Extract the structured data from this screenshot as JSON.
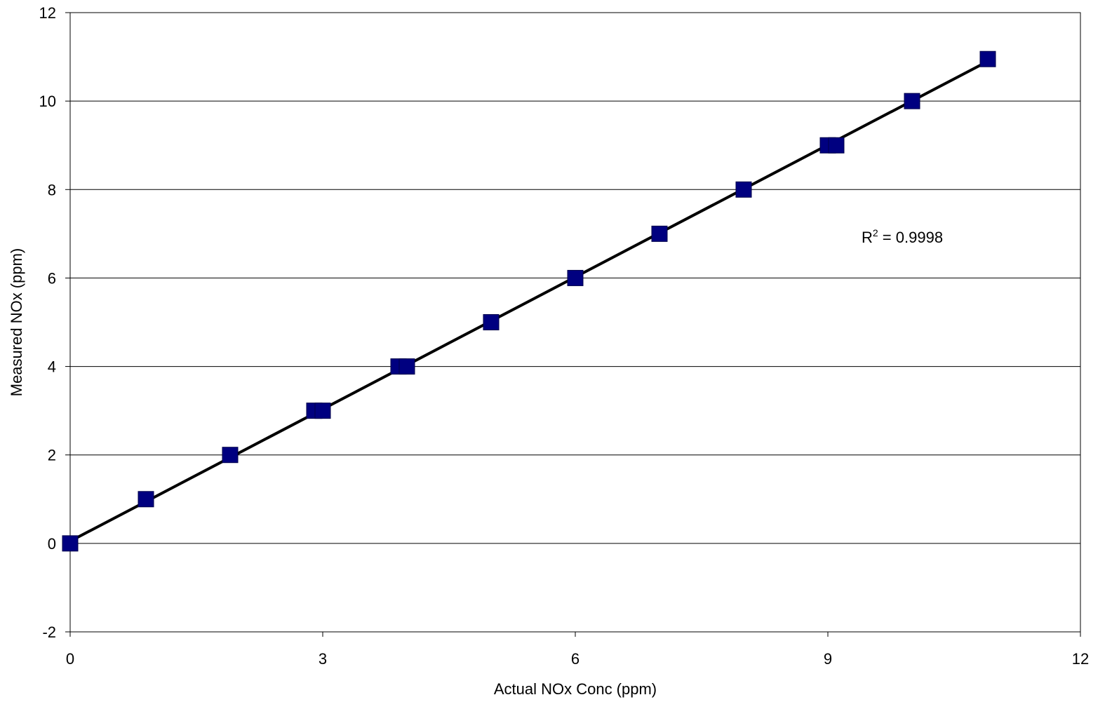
{
  "chart_data": {
    "type": "scatter",
    "xlabel": "Actual NOx Conc (ppm)",
    "ylabel": "Measured NOx (ppm)",
    "xlim": [
      0,
      12
    ],
    "ylim": [
      -2,
      12
    ],
    "x_ticks": [
      0,
      3,
      6,
      9,
      12
    ],
    "y_ticks": [
      -2,
      0,
      2,
      4,
      6,
      8,
      10,
      12
    ],
    "grid": {
      "horizontal": true,
      "vertical": false
    },
    "legend": "none",
    "marker": "square",
    "colors": {
      "marker": "#000080",
      "trendline": "#000000",
      "grid": "#000000"
    },
    "series": [
      {
        "x": [
          0,
          0.9,
          1.9,
          2.9,
          3.0,
          3.9,
          4.0,
          5.0,
          6.0,
          7.0,
          8.0,
          9.0,
          9.1,
          10.0,
          10.9
        ],
        "y": [
          0,
          1.0,
          2.0,
          3.0,
          3.0,
          4.0,
          4.0,
          5.0,
          6.0,
          7.0,
          8.0,
          9.0,
          9.0,
          10.0,
          10.95
        ]
      }
    ],
    "trendline": {
      "type": "linear",
      "x": [
        0,
        10.9
      ],
      "y": [
        0.05,
        10.9
      ]
    },
    "annotation": {
      "r_label": "R",
      "superscript": "2",
      "value_text": " = 0.9998",
      "x": 9.4,
      "y": 6.8
    }
  }
}
